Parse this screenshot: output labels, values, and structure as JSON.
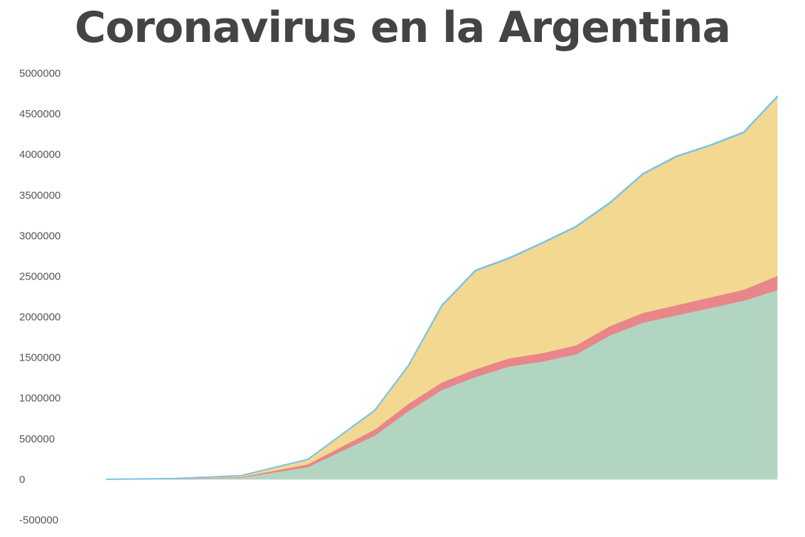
{
  "chart_data": {
    "type": "area",
    "stacked": true,
    "title": "Coronavirus en la Argentina",
    "xlabel": "",
    "ylabel": "",
    "ylim": [
      -500000,
      5000000
    ],
    "y_ticks": [
      5000000,
      4500000,
      4000000,
      3500000,
      3000000,
      2500000,
      2000000,
      1500000,
      1000000,
      500000,
      0,
      -500000
    ],
    "x_ticks": [],
    "grid": false,
    "legend": "none",
    "x": [
      0,
      10,
      20,
      30,
      40,
      45,
      50,
      55,
      60,
      65,
      70,
      75,
      80,
      85,
      90,
      95,
      100
    ],
    "series": [
      {
        "color": "#b2d5c2",
        "values": [
          0,
          2000,
          20000,
          150000,
          540000,
          840000,
          1100000,
          1260000,
          1390000,
          1450000,
          1540000,
          1770000,
          1930000,
          2020000,
          2110000,
          2200000,
          2330000
        ]
      },
      {
        "color": "#e8868a",
        "values": [
          0,
          3000,
          8000,
          35000,
          75000,
          90000,
          95000,
          95000,
          100000,
          105000,
          110000,
          115000,
          120000,
          125000,
          130000,
          135000,
          175000
        ]
      },
      {
        "color": "#f3d892",
        "values": [
          0,
          5000,
          17000,
          60000,
          235000,
          470000,
          945000,
          1215000,
          1230000,
          1355000,
          1460000,
          1515000,
          1710000,
          1830000,
          1870000,
          1935000,
          2205000
        ]
      },
      {
        "color": "#7cc3e6",
        "values": [
          0,
          0,
          0,
          1000,
          2000,
          3000,
          5000,
          5000,
          6000,
          6000,
          6000,
          6000,
          6000,
          6000,
          6000,
          6000,
          6000
        ]
      }
    ]
  }
}
